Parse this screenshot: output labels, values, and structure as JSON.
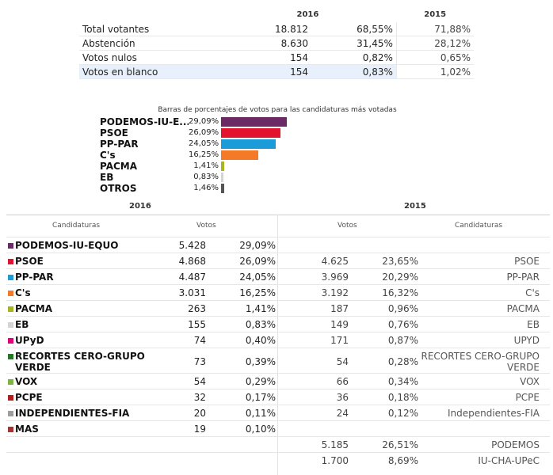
{
  "summary": {
    "year_2016": "2016",
    "year_2015": "2015",
    "rows": [
      {
        "label": "Total votantes",
        "v16": "18.812",
        "p16": "68,55%",
        "p15": "71,88%"
      },
      {
        "label": "Abstención",
        "v16": "8.630",
        "p16": "31,45%",
        "p15": "28,12%"
      },
      {
        "label": "Votos nulos",
        "v16": "154",
        "p16": "0,82%",
        "p15": "0,65%"
      },
      {
        "label": "Votos en blanco",
        "v16": "154",
        "p16": "0,83%",
        "p15": "1,02%"
      }
    ]
  },
  "bars": {
    "title": "Barras de porcentajes de votos para las candidaturas más votadas",
    "items": [
      {
        "name": "PODEMOS-IU-E...",
        "pct": "29,09%",
        "value": 29.09,
        "color": "#6b2a63"
      },
      {
        "name": "PSOE",
        "pct": "26,09%",
        "value": 26.09,
        "color": "#e3132f"
      },
      {
        "name": "PP-PAR",
        "pct": "24,05%",
        "value": 24.05,
        "color": "#1b9bd7"
      },
      {
        "name": "C's",
        "pct": "16,25%",
        "value": 16.25,
        "color": "#f57a28"
      },
      {
        "name": "PACMA",
        "pct": "1,41%",
        "value": 1.41,
        "color": "#a8b51e"
      },
      {
        "name": "EB",
        "pct": "0,83%",
        "value": 0.83,
        "color": "#d4d4d4"
      },
      {
        "name": "OTROS",
        "pct": "1,46%",
        "value": 1.46,
        "color": "#555555"
      }
    ]
  },
  "results": {
    "year_2016": "2016",
    "year_2015": "2015",
    "col_candidaturas": "Candidaturas",
    "col_votos": "Votos",
    "rows": [
      {
        "name": "PODEMOS-IU-EQUO",
        "color": "#6b2a63",
        "v16": "5.428",
        "p16": "29,09%",
        "v15": "",
        "p15": "",
        "c15": ""
      },
      {
        "name": "PSOE",
        "color": "#e3132f",
        "v16": "4.868",
        "p16": "26,09%",
        "v15": "4.625",
        "p15": "23,65%",
        "c15": "PSOE"
      },
      {
        "name": "PP-PAR",
        "color": "#1b9bd7",
        "v16": "4.487",
        "p16": "24,05%",
        "v15": "3.969",
        "p15": "20,29%",
        "c15": "PP-PAR"
      },
      {
        "name": "C's",
        "color": "#f57a28",
        "v16": "3.031",
        "p16": "16,25%",
        "v15": "3.192",
        "p15": "16,32%",
        "c15": "C's"
      },
      {
        "name": "PACMA",
        "color": "#a8b51e",
        "v16": "263",
        "p16": "1,41%",
        "v15": "187",
        "p15": "0,96%",
        "c15": "PACMA"
      },
      {
        "name": "EB",
        "color": "#d4d4d4",
        "v16": "155",
        "p16": "0,83%",
        "v15": "149",
        "p15": "0,76%",
        "c15": "EB"
      },
      {
        "name": "UPyD",
        "color": "#e4007c",
        "v16": "74",
        "p16": "0,40%",
        "v15": "171",
        "p15": "0,87%",
        "c15": "UPYD"
      },
      {
        "name": "RECORTES CERO-GRUPO VERDE",
        "color": "#1f7a1f",
        "v16": "73",
        "p16": "0,39%",
        "v15": "54",
        "p15": "0,28%",
        "c15": "RECORTES CERO-GRUPO VERDE",
        "tall": true
      },
      {
        "name": "VOX",
        "color": "#7cb342",
        "v16": "54",
        "p16": "0,29%",
        "v15": "66",
        "p15": "0,34%",
        "c15": "VOX"
      },
      {
        "name": "PCPE",
        "color": "#b71c1c",
        "v16": "32",
        "p16": "0,17%",
        "v15": "36",
        "p15": "0,18%",
        "c15": "PCPE"
      },
      {
        "name": "INDEPENDIENTES-FIA",
        "color": "#9e9e9e",
        "v16": "20",
        "p16": "0,11%",
        "v15": "24",
        "p15": "0,12%",
        "c15": "Independientes-FIA"
      },
      {
        "name": "MAS",
        "color": "#a83232",
        "v16": "19",
        "p16": "0,10%",
        "v15": "",
        "p15": "",
        "c15": ""
      },
      {
        "name": "",
        "color": "",
        "v16": "",
        "p16": "",
        "v15": "5.185",
        "p15": "26,51%",
        "c15": "PODEMOS"
      },
      {
        "name": "",
        "color": "",
        "v16": "",
        "p16": "",
        "v15": "1.700",
        "p15": "8,69%",
        "c15": "IU-CHA-UPeC"
      }
    ]
  }
}
